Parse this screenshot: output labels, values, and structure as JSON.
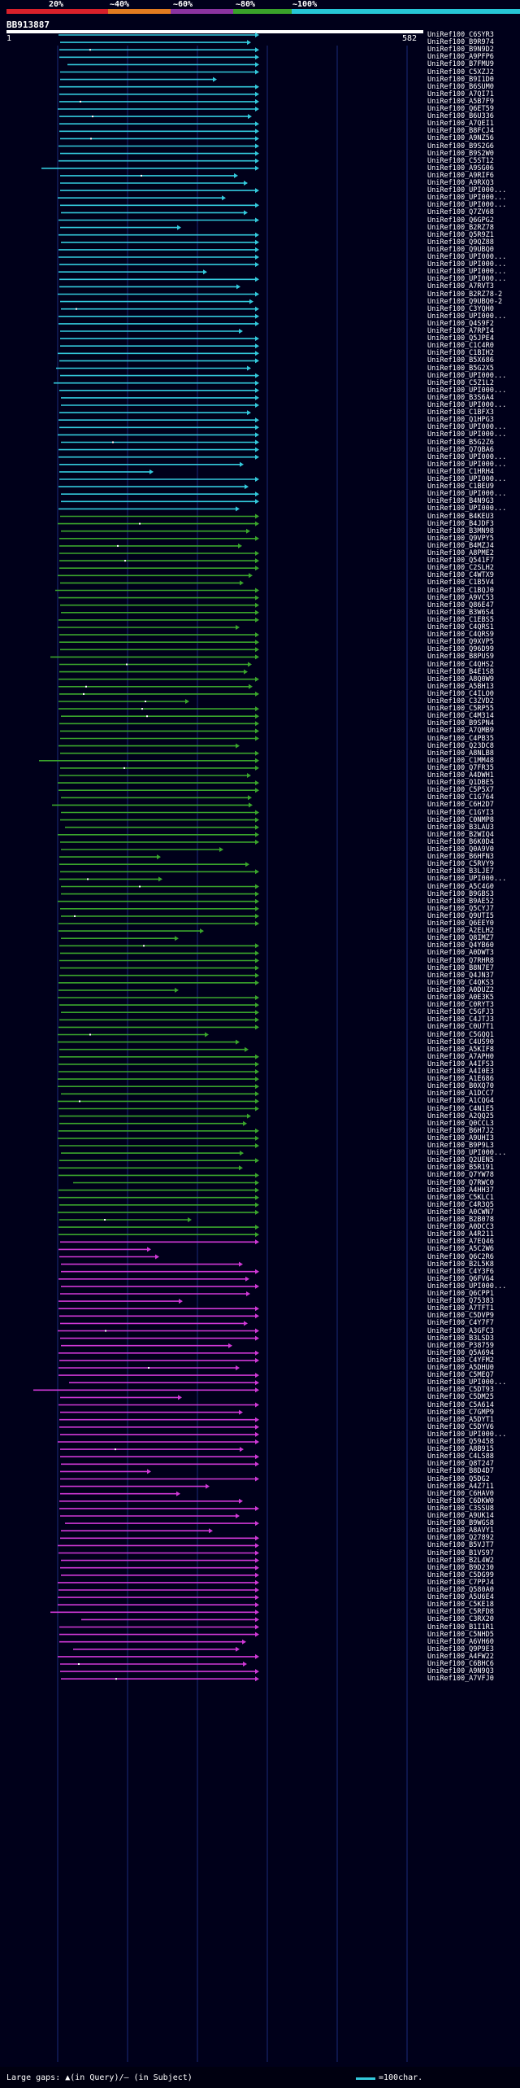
{
  "legend": {
    "labels": [
      "20%",
      "~40%",
      "~60%",
      "~80%",
      "~100%"
    ],
    "colors": {
      "scale_20": "#d8202a",
      "scale_40": "#e07a20",
      "scale_60": "#8a33a0",
      "scale_80": "#39a12a",
      "scale_100": "#26c6d6",
      "magenta": "#d038d6",
      "green": "#3aa52c",
      "cyan": "#33c9dc",
      "background": "#00001a"
    }
  },
  "query": {
    "id": "BB913887",
    "start": "1",
    "end": "582"
  },
  "hits": [
    "UniRef100_C6SYR3",
    "UniRef100_B9R974",
    "UniRef100_B9N9D2",
    "UniRef100_A9PFP6",
    "UniRef100_B7FMU9",
    "UniRef100_C5XZJ2",
    "UniRef100_B9I1D0",
    "UniRef100_B6SUM0",
    "UniRef100_A7QI71",
    "UniRef100_A5B7F9",
    "UniRef100_Q6ET59",
    "UniRef100_B6U336",
    "UniRef100_A7QEI1",
    "UniRef100_B8FCJ4",
    "UniRef100_A9NZ56",
    "UniRef100_B9S2G6",
    "UniRef100_B9S2W0",
    "UniRef100_C5ST12",
    "UniRef100_A9SG06",
    "UniRef100_A9RIF6",
    "UniRef100_A9RXQ3",
    "UniRef100_UPI000...",
    "UniRef100_UPI000...",
    "UniRef100_UPI000...",
    "UniRef100_Q7ZV68",
    "UniRef100_Q6GPG2",
    "UniRef100_B2RZ78",
    "UniRef100_Q5R9Z1",
    "UniRef100_Q9QZ88",
    "UniRef100_Q9UBQ0",
    "UniRef100_UPI000...",
    "UniRef100_UPI000...",
    "UniRef100_UPI000...",
    "UniRef100_UPI000...",
    "UniRef100_A7RVT3",
    "UniRef100_B2RZ78-2",
    "UniRef100_Q9UBQ0-2",
    "UniRef100_C3YQH0",
    "UniRef100_UPI000...",
    "UniRef100_Q4S9F2",
    "UniRef100_A7RPI4",
    "UniRef100_Q5JPE4",
    "UniRef100_C1C4R0",
    "UniRef100_C1BIH2",
    "UniRef100_B5X686",
    "UniRef100_B5G2X5",
    "UniRef100_UPI000...",
    "UniRef100_C5Z1L2",
    "UniRef100_UPI000...",
    "UniRef100_B3S6A4",
    "UniRef100_UPI000...",
    "UniRef100_C1BFX3",
    "UniRef100_Q1HPG3",
    "UniRef100_UPI000...",
    "UniRef100_UPI000...",
    "UniRef100_B5G2Z6",
    "UniRef100_Q7QBA6",
    "UniRef100_UPI000...",
    "UniRef100_UPI000...",
    "UniRef100_C1HRH4",
    "UniRef100_UPI000...",
    "UniRef100_C1BEU9",
    "UniRef100_UPI000...",
    "UniRef100_B4N9G3",
    "UniRef100_UPI000...",
    "UniRef100_B4KEU3",
    "UniRef100_B4JDF3",
    "UniRef100_B3MN98",
    "UniRef100_Q9VPY5",
    "UniRef100_B4MZJ4",
    "UniRef100_A8PME2",
    "UniRef100_Q541F7",
    "UniRef100_C2SLH2",
    "UniRef100_C4WTX9",
    "UniRef100_C1B5V4",
    "UniRef100_C1BQJ0",
    "UniRef100_A9VC53",
    "UniRef100_Q86E47",
    "UniRef100_B3W6S4",
    "UniRef100_C1EBS5",
    "UniRef100_C4QRS1",
    "UniRef100_C4QRS9",
    "UniRef100_Q9XVP5",
    "UniRef100_Q96D99",
    "UniRef100_B8PUS9",
    "UniRef100_C4QHS2",
    "UniRef100_B4E1S8",
    "UniRef100_A8Q0W9",
    "UniRef100_A5BH13",
    "UniRef100_C4ILO0",
    "UniRef100_C3ZVD2",
    "UniRef100_C5RP55",
    "UniRef100_C4M314",
    "UniRef100_B9SPN4",
    "UniRef100_A7QMB9",
    "UniRef100_C4PB35",
    "UniRef100_Q23DC8",
    "UniRef100_A8NLB8",
    "UniRef100_C1MM48",
    "UniRef100_Q7FR35",
    "UniRef100_A4DWH1",
    "UniRef100_Q1DBE5",
    "UniRef100_C5P5X7",
    "UniRef100_C1G764",
    "UniRef100_C6H2D7",
    "UniRef100_C1GYI3",
    "UniRef100_C0NMP8",
    "UniRef100_B3LAU3",
    "UniRef100_B2WIQ4",
    "UniRef100_B6K0D4",
    "UniRef100_Q0A9V0",
    "UniRef100_B6HFN3",
    "UniRef100_C5RVY9",
    "UniRef100_B3LJE7",
    "UniRef100_UPI000...",
    "UniRef100_A5C4G0",
    "UniRef100_B9GBS3",
    "UniRef100_B9AE52",
    "UniRef100_Q5CYJ7",
    "UniRef100_Q9UTI5",
    "UniRef100_Q6EEY0",
    "UniRef100_A2ELH2",
    "UniRef100_Q8IMZ7",
    "UniRef100_Q4YB60",
    "UniRef100_A0DWT3",
    "UniRef100_Q7RHR8",
    "UniRef100_B8N7E7",
    "UniRef100_Q4JN37",
    "UniRef100_C4QKS3",
    "UniRef100_A0DUZ2",
    "UniRef100_A0E3K5",
    "UniRef100_C0RYT3",
    "UniRef100_C5GFJ3",
    "UniRef100_C4JTJ3",
    "UniRef100_C0U7T1",
    "UniRef100_C5GQQ1",
    "UniRef100_C4US90",
    "UniRef100_A5KIF8",
    "UniRef100_A7APH0",
    "UniRef100_A4IFS3",
    "UniRef100_A4I0E3",
    "UniRef100_A1E686",
    "UniRef100_B0XQ70",
    "UniRef100_A1DCC7",
    "UniRef100_A1CQG4",
    "UniRef100_C4N1E5",
    "UniRef100_A2QQ25",
    "UniRef100_Q0CCL3",
    "UniRef100_B6H7J2",
    "UniRef100_A9UHI3",
    "UniRef100_B9P9L3",
    "UniRef100_UPI000...",
    "UniRef100_Q2UEN5",
    "UniRef100_B5R191",
    "UniRef100_Q7YW78",
    "UniRef100_Q7RWC0",
    "UniRef100_A4HH37",
    "UniRef100_C5KLC1",
    "UniRef100_C4R3Q5",
    "UniRef100_A0CWN7",
    "UniRef100_B2B078",
    "UniRef100_A0DCC3",
    "UniRef100_A4R211",
    "UniRef100_A7EQ46",
    "UniRef100_A5C2W6",
    "UniRef100_Q6C2R6",
    "UniRef100_B2L5K8",
    "UniRef100_C4Y3F6",
    "UniRef100_Q6FV64",
    "UniRef100_UPI000...",
    "UniRef100_Q6CPP1",
    "UniRef100_Q75383",
    "UniRef100_A7TFT1",
    "UniRef100_C5DVP9",
    "UniRef100_C4Y7F7",
    "UniRef100_A3GFC3",
    "UniRef100_B3LSD3",
    "UniRef100_P38759",
    "UniRef100_Q5A694",
    "UniRef100_C4YFM2",
    "UniRef100_A5DHU0",
    "UniRef100_C5MEQ7",
    "UniRef100_UPI000...",
    "UniRef100_C5DT93",
    "UniRef100_C5DM25",
    "UniRef100_C5A614",
    "UniRef100_C7GMP9",
    "UniRef100_A5DYT1",
    "UniRef100_C5DYV6",
    "UniRef100_UPI000...",
    "UniRef100_Q59458",
    "UniRef100_A8B915",
    "UniRef100_C4LS88",
    "UniRef100_Q8T247",
    "UniRef100_B8D4D7",
    "UniRef100_Q5DG2",
    "UniRef100_A4Z711",
    "UniRef100_C6HAV0",
    "UniRef100_C6DKW0",
    "UniRef100_C3SSU8",
    "UniRef100_A9UK14",
    "UniRef100_B9WGS8",
    "UniRef100_A8AVY1",
    "UniRef100_Q27892",
    "UniRef100_B5VJT7",
    "UniRef100_B1VS97",
    "UniRef100_B2L4W2",
    "UniRef100_B9D230",
    "UniRef100_C5DG99",
    "UniRef100_C7PPJ4",
    "UniRef100_Q580A0",
    "UniRef100_A5U6E4",
    "UniRef100_C5KE18",
    "UniRef100_C5RFD8",
    "UniRef100_C3RX20",
    "UniRef100_B1I1R1",
    "UniRef100_C5NHD5",
    "UniRef100_A6VH60",
    "UniRef100_Q9P9E3",
    "UniRef100_A4FW22",
    "UniRef100_C6BHC6",
    "UniRef100_A9N9Q3",
    "UniRef100_A7VFJ0"
  ]
}
